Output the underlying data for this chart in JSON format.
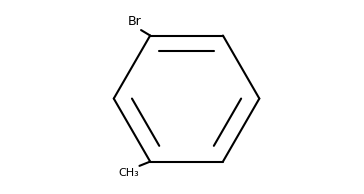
{
  "bg_color": "#ffffff",
  "line_color": "#000000",
  "line_width": 1.5,
  "font_size": 9,
  "figsize": [
    3.64,
    1.94
  ],
  "dpi": 100
}
